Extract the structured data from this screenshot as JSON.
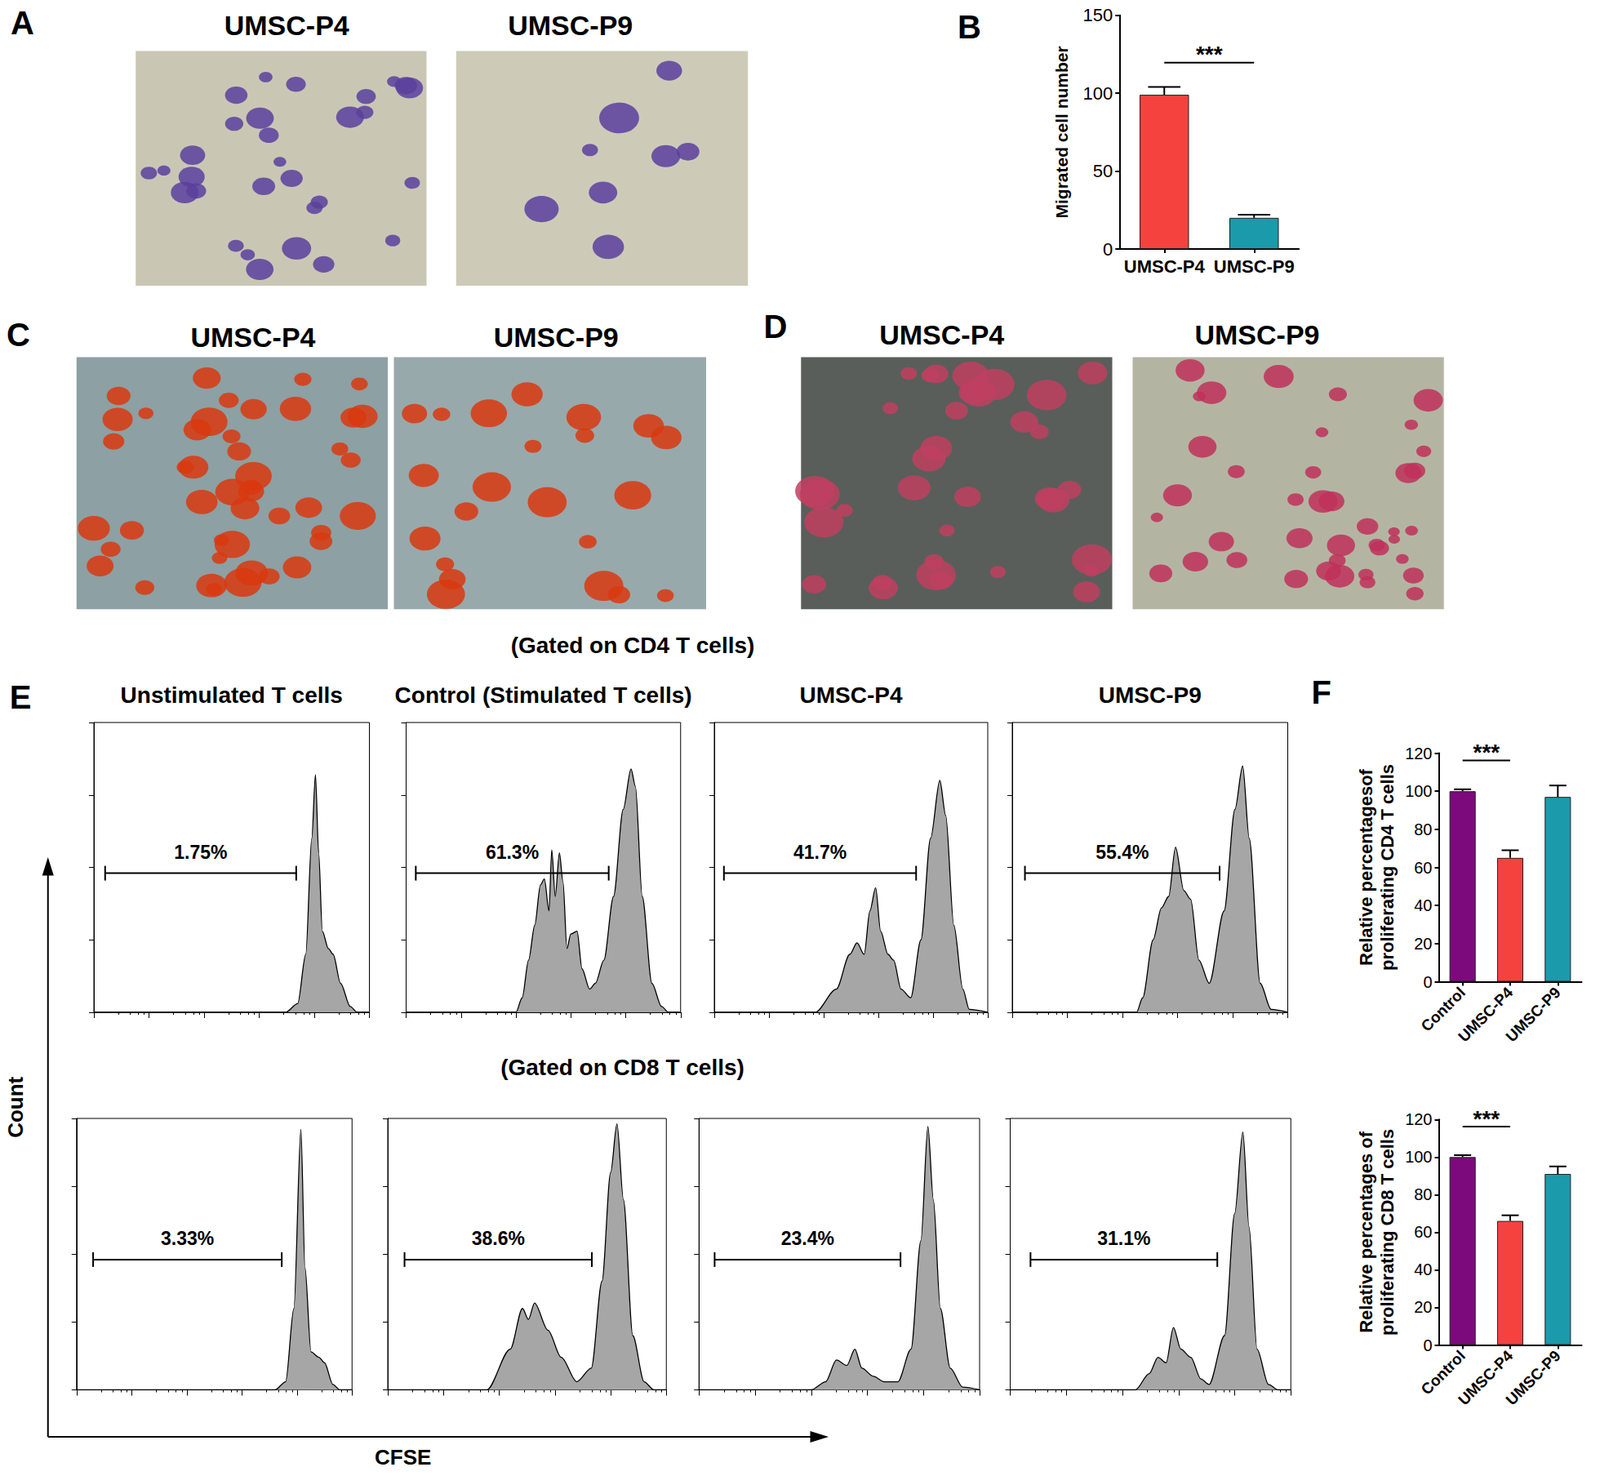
{
  "panel_letters": [
    "A",
    "B",
    "C",
    "D",
    "E",
    "F"
  ],
  "images": [
    {
      "titles": [
        "UMSC-P4",
        "UMSC-P9"
      ]
    },
    {
      "titles": [
        "UMSC-P4",
        "UMSC-P9"
      ]
    },
    {
      "titles": [
        "UMSC-P4",
        "UMSC-P9"
      ]
    }
  ],
  "row_titles": [
    "(Gated on CD4 T cells)",
    "(Gated on CD8 T cells)"
  ],
  "histogram_axes": {
    "xlabel": "CFSE",
    "ylabel": "Count"
  },
  "chart_data": [
    {
      "type": "bar",
      "categories": [
        "UMSC-P4",
        "UMSC-P9"
      ],
      "values": [
        99,
        20
      ],
      "errors": [
        5,
        2
      ],
      "colors": [
        "#f5423f",
        "#1a9aaa"
      ],
      "ylabel": "Migrated cell number",
      "ylim": [
        0,
        150
      ],
      "yticks": [
        0,
        50,
        100,
        150
      ],
      "annotations": [
        {
          "text": "***",
          "from": "UMSC-P4",
          "to": "UMSC-P9"
        }
      ]
    },
    {
      "type": "bar",
      "categories": [
        "Control",
        "UMSC-P4",
        "UMSC-P9"
      ],
      "values": [
        100,
        65,
        97
      ],
      "errors": [
        1,
        4,
        6
      ],
      "colors": [
        "#7d0a7d",
        "#f5423f",
        "#1a9aaa"
      ],
      "ylabel": "Relative percentagesof\nproliferating CD4 T cells",
      "ylim": [
        0,
        120
      ],
      "yticks": [
        0,
        20,
        40,
        60,
        80,
        100,
        120
      ],
      "annotations": [
        {
          "text": "***",
          "from": "Control",
          "to": "UMSC-P4"
        }
      ]
    },
    {
      "type": "bar",
      "categories": [
        "Control",
        "UMSC-P4",
        "UMSC-P9"
      ],
      "values": [
        100,
        66,
        91
      ],
      "errors": [
        1,
        3,
        4
      ],
      "colors": [
        "#7d0a7d",
        "#f5423f",
        "#1a9aaa"
      ],
      "ylabel": "Relative percentages of\nproliferating CD8 T cells",
      "ylim": [
        0,
        120
      ],
      "yticks": [
        0,
        20,
        40,
        60,
        80,
        100,
        120
      ],
      "annotations": [
        {
          "text": "***",
          "from": "Control",
          "to": "UMSC-P4"
        }
      ]
    },
    {
      "type": "area",
      "title": "Unstimulated T cells",
      "color": "#a6a6a6",
      "log": "x",
      "x": [
        1,
        3000,
        5000,
        7000,
        9000,
        10500,
        12000,
        14000,
        18000,
        22000,
        30000,
        45000,
        60000,
        100000
      ],
      "values": [
        0,
        0,
        3,
        20,
        60,
        82,
        55,
        28,
        22,
        20,
        10,
        2,
        0,
        0
      ],
      "xlim": [
        1,
        100000
      ],
      "xticks": [
        1,
        10,
        100,
        1000,
        10000,
        100000
      ],
      "ylim": [
        0,
        100
      ],
      "yticks": [
        0,
        25,
        50,
        75,
        100
      ],
      "tick_labels": false,
      "gate": {
        "range": [
          1.6,
          4700
        ],
        "height": 48,
        "text": "1.75%"
      }
    },
    {
      "type": "area",
      "title": "Control (Stimulated T cells)",
      "color": "#a6a6a6",
      "log": "x",
      "x": [
        1,
        100,
        130,
        170,
        220,
        280,
        330,
        400,
        450,
        520,
        620,
        720,
        850,
        1000,
        1300,
        1600,
        2200,
        2800,
        4000,
        6000,
        9000,
        12500,
        15000,
        20000,
        30000,
        45000,
        60000,
        100000
      ],
      "values": [
        0,
        0,
        5,
        18,
        30,
        44,
        46,
        35,
        56,
        40,
        55,
        45,
        22,
        27,
        28,
        15,
        8,
        10,
        18,
        40,
        70,
        84,
        78,
        40,
        10,
        2,
        0,
        0
      ],
      "xlim": [
        1,
        100000
      ],
      "xticks": [
        1,
        10,
        100,
        1000,
        10000,
        100000
      ],
      "ylim": [
        0,
        100
      ],
      "yticks": [
        0,
        25,
        50,
        75,
        100
      ],
      "tick_labels": false,
      "gate": {
        "range": [
          1.5,
          4900
        ],
        "height": 48,
        "text": "61.3%"
      }
    },
    {
      "type": "area",
      "title": "UMSC-P4",
      "color": "#a6a6a6",
      "log": "x",
      "x": [
        1,
        70,
        170,
        300,
        407,
        550,
        700,
        891,
        1100,
        1500,
        1900,
        2600,
        3900,
        6000,
        9000,
        13300,
        17000,
        24000,
        35000,
        46000,
        100000
      ],
      "values": [
        0,
        0,
        8,
        20,
        24,
        20,
        35,
        43,
        28,
        20,
        18,
        8,
        5,
        25,
        60,
        80,
        68,
        30,
        8,
        1,
        0
      ],
      "xlim": [
        1,
        100000
      ],
      "xticks": [
        1,
        10,
        100,
        1000,
        10000,
        100000
      ],
      "ylim": [
        0,
        100
      ],
      "yticks": [
        0,
        25,
        50,
        75,
        100
      ],
      "tick_labels": false,
      "gate": {
        "range": [
          1.5,
          4900
        ],
        "height": 48,
        "text": "41.7%"
      }
    },
    {
      "type": "area",
      "title": "UMSC-P9",
      "color": "#a6a6a6",
      "log": "x",
      "x": [
        1,
        180,
        233,
        360,
        510,
        690,
        920,
        1300,
        1730,
        2440,
        3760,
        7000,
        11000,
        15200,
        20000,
        31600,
        50000,
        100000
      ],
      "values": [
        0,
        0,
        5,
        25,
        36,
        40,
        57,
        42,
        39,
        18,
        10,
        35,
        70,
        85,
        60,
        10,
        1,
        0
      ],
      "xlim": [
        1,
        100000
      ],
      "xticks": [
        1,
        10,
        100,
        1000,
        10000,
        100000
      ],
      "ylim": [
        0,
        100
      ],
      "yticks": [
        0,
        25,
        50,
        75,
        100
      ],
      "tick_labels": false,
      "gate": {
        "range": [
          1.7,
          5800
        ],
        "height": 48,
        "text": "55.4%"
      }
    },
    {
      "type": "area",
      "color": "#a6a6a6",
      "log": "x",
      "x": [
        1,
        4000,
        6240,
        8800,
        11800,
        14000,
        18000,
        25000,
        31600,
        45000,
        60000,
        100000
      ],
      "values": [
        0,
        0,
        3,
        30,
        96,
        45,
        14,
        12,
        10,
        2,
        0,
        0
      ],
      "xlim": [
        1,
        100000
      ],
      "xticks": [
        1,
        10,
        100,
        1000,
        10000,
        100000
      ],
      "ylim": [
        0,
        100
      ],
      "yticks": [
        0,
        25,
        50,
        75,
        100
      ],
      "tick_labels": false,
      "gate": {
        "range": [
          2,
          5300
        ],
        "height": 48,
        "text": "3.33%"
      }
    },
    {
      "type": "area",
      "color": "#a6a6a6",
      "log": "x",
      "x": [
        1,
        60,
        158,
        262,
        335,
        432,
        750,
        1300,
        2470,
        4500,
        7000,
        10000,
        13000,
        17000,
        25000,
        40000,
        60000,
        100000
      ],
      "values": [
        0,
        0,
        15,
        30,
        26,
        32,
        22,
        12,
        3,
        8,
        40,
        80,
        98,
        70,
        20,
        3,
        0,
        0
      ],
      "xlim": [
        1,
        100000
      ],
      "xticks": [
        1,
        10,
        100,
        1000,
        10000,
        100000
      ],
      "ylim": [
        0,
        100
      ],
      "yticks": [
        0,
        25,
        50,
        75,
        100
      ],
      "tick_labels": false,
      "gate": {
        "range": [
          2,
          4600
        ],
        "height": 48,
        "text": "38.6%"
      }
    },
    {
      "type": "area",
      "color": "#a6a6a6",
      "log": "x",
      "x": [
        1,
        100,
        180,
        282,
        430,
        600,
        800,
        1280,
        2000,
        3500,
        6000,
        9000,
        12000,
        15000,
        20000,
        30000,
        50000,
        100000
      ],
      "values": [
        0,
        0,
        3,
        11,
        9,
        15,
        8,
        5,
        3,
        3,
        15,
        55,
        97,
        70,
        30,
        8,
        1,
        0
      ],
      "xlim": [
        1,
        100000
      ],
      "xticks": [
        1,
        10,
        100,
        1000,
        10000,
        100000
      ],
      "ylim": [
        0,
        100
      ],
      "yticks": [
        0,
        25,
        50,
        75,
        100
      ],
      "tick_labels": false,
      "gate": {
        "range": [
          1.9,
          3900
        ],
        "height": 48,
        "text": "23.4%"
      }
    },
    {
      "type": "area",
      "color": "#a6a6a6",
      "log": "x",
      "x": [
        1,
        170,
        300,
        430,
        600,
        810,
        1100,
        1650,
        2500,
        3500,
        6600,
        10000,
        14000,
        18000,
        25000,
        40000,
        60000,
        100000
      ],
      "values": [
        0,
        0,
        6,
        12,
        10,
        23,
        15,
        12,
        4,
        2,
        20,
        65,
        95,
        60,
        15,
        2,
        0,
        0
      ],
      "xlim": [
        1,
        100000
      ],
      "xticks": [
        1,
        10,
        100,
        1000,
        10000,
        100000
      ],
      "ylim": [
        0,
        100
      ],
      "yticks": [
        0,
        25,
        50,
        75,
        100
      ],
      "tick_labels": false,
      "gate": {
        "range": [
          2.3,
          4900
        ],
        "height": 48,
        "text": "31.1%"
      }
    }
  ]
}
